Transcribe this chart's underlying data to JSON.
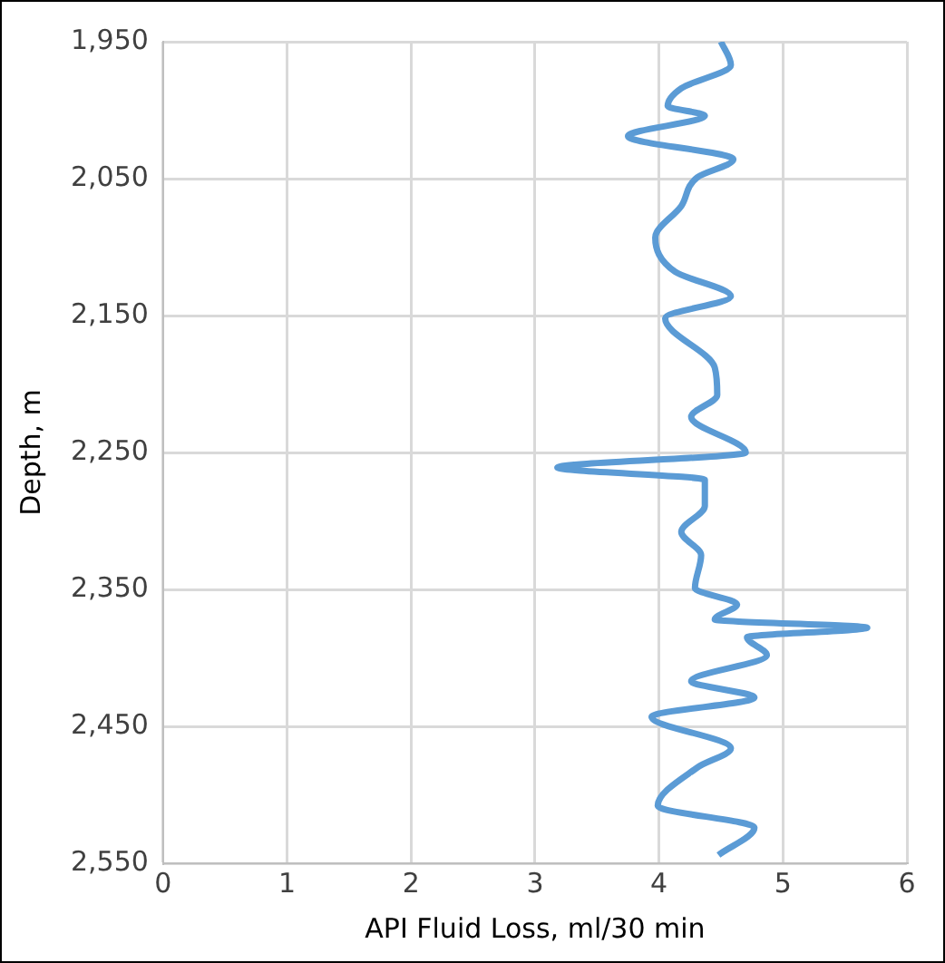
{
  "chart_data": {
    "type": "line",
    "xlabel": "API Fluid Loss, ml/30 min",
    "ylabel": "Depth, m",
    "xlim": [
      0,
      6
    ],
    "xticks": [
      0,
      1,
      2,
      3,
      4,
      5,
      6
    ],
    "ylim": [
      2550,
      1950
    ],
    "yticks": [
      {
        "value": 1950,
        "label": "1,950"
      },
      {
        "value": 2050,
        "label": "2,050"
      },
      {
        "value": 2150,
        "label": "2,150"
      },
      {
        "value": 2250,
        "label": "2,250"
      },
      {
        "value": 2350,
        "label": "2,350"
      },
      {
        "value": 2450,
        "label": "2,450"
      },
      {
        "value": 2550,
        "label": "2,550"
      }
    ],
    "grid": true,
    "legend": false,
    "marker": "none",
    "line_style": "solid",
    "series": [
      {
        "color": "#5b9bd5",
        "x": [
          4.5,
          4.58,
          4.18,
          4.07,
          4.37,
          3.75,
          4.6,
          4.31,
          4.18,
          3.97,
          4.13,
          4.58,
          4.05,
          4.45,
          4.47,
          4.26,
          4.7,
          3.18,
          4.37,
          4.37,
          4.18,
          4.34,
          4.29,
          4.63,
          4.45,
          5.68,
          4.71,
          4.87,
          4.26,
          4.77,
          3.94,
          4.58,
          4.31,
          3.99,
          4.77,
          4.48
        ],
        "values": [
          1950,
          1967,
          1984,
          1997,
          2004,
          2019,
          2036,
          2049,
          2070,
          2093,
          2118,
          2136,
          2152,
          2188,
          2208,
          2224,
          2250,
          2261,
          2270,
          2289,
          2308,
          2325,
          2349,
          2361,
          2372,
          2378,
          2385,
          2398,
          2417,
          2429,
          2443,
          2466,
          2480,
          2508,
          2524,
          2544
        ]
      }
    ]
  }
}
